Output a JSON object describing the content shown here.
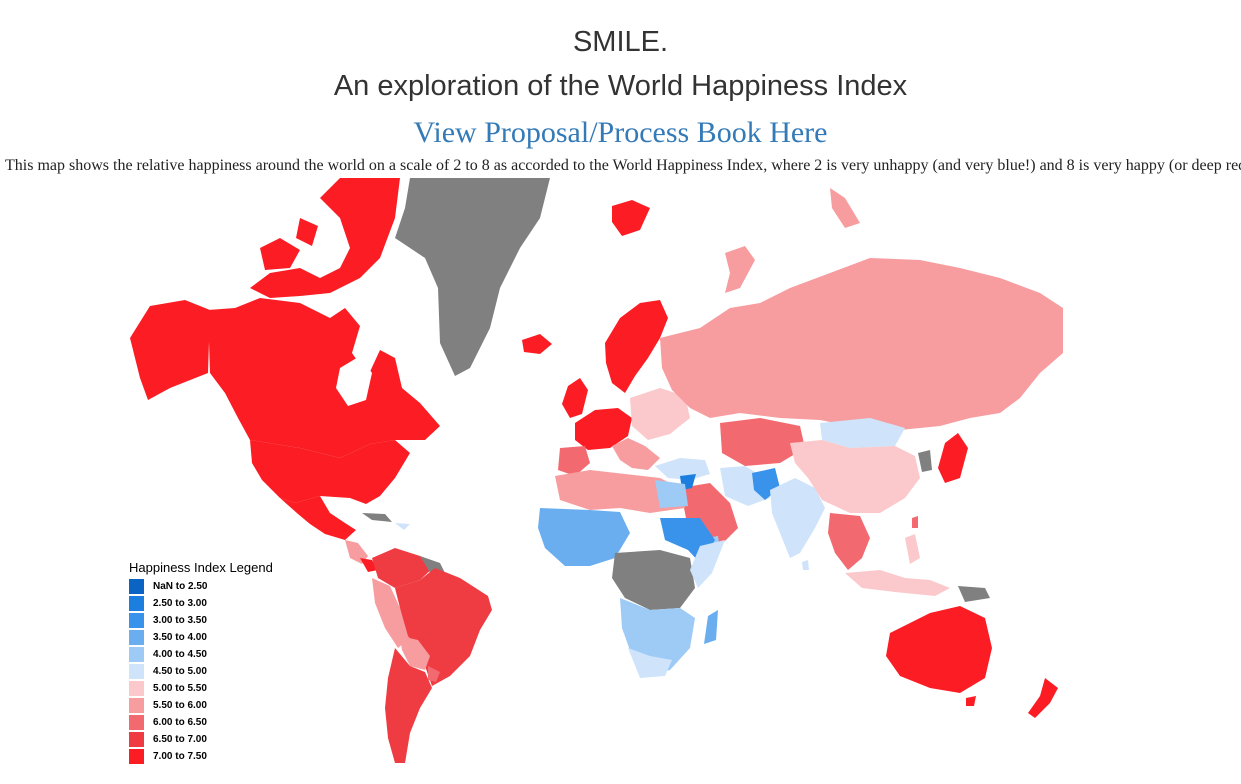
{
  "header": {
    "title": "SMILE.",
    "subtitle": "An exploration of the World Happiness Index",
    "link_label": "View Proposal/Process Book Here"
  },
  "description": "This map shows the relative happiness around the world on a scale of 2 to 8 as accorded to the World Happiness Index, where 2 is very unhappy (and very blue!) and 8 is very happy (or deep red",
  "legend": {
    "title": "Happiness Index Legend",
    "items": [
      {
        "label": "NaN to 2.50",
        "color": "#0b63c4"
      },
      {
        "label": "2.50 to 3.00",
        "color": "#1c7fe0"
      },
      {
        "label": "3.00 to 3.50",
        "color": "#3a93ea"
      },
      {
        "label": "3.50 to 4.00",
        "color": "#6aaef0"
      },
      {
        "label": "4.00 to 4.50",
        "color": "#9ecbf6"
      },
      {
        "label": "4.50 to 5.00",
        "color": "#cfe4fa"
      },
      {
        "label": "5.00 to 5.50",
        "color": "#fbc9cb"
      },
      {
        "label": "5.50 to 6.00",
        "color": "#f79c9f"
      },
      {
        "label": "6.00 to 6.50",
        "color": "#f26a70"
      },
      {
        "label": "6.50 to 7.00",
        "color": "#ef3b42"
      },
      {
        "label": "7.00 to 7.50",
        "color": "#fc1c24"
      }
    ]
  },
  "map_colors": {
    "no_data": "#808080",
    "very_high": "#fc1c24",
    "high": "#ef3b42",
    "upper_mid": "#f26a70",
    "mid": "#f79c9f",
    "low_mid": "#fbc9cb",
    "lower": "#cfe4fa",
    "low": "#9ecbf6",
    "very_low": "#6aaef0",
    "lowest": "#3a93ea"
  }
}
